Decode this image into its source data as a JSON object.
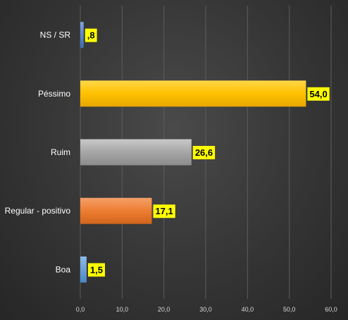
{
  "chart_data": {
    "type": "bar",
    "orientation": "horizontal",
    "categories": [
      "NS / SR",
      "Péssimo",
      "Ruim",
      "Regular - positivo",
      "Boa"
    ],
    "values": [
      0.8,
      54.0,
      26.6,
      17.1,
      1.5
    ],
    "value_labels": [
      ",8",
      "54,0",
      "26,6",
      "17,1",
      "1,5"
    ],
    "bar_colors": [
      "#4f81bd",
      "#ffc000",
      "#a6a6a6",
      "#ed7d31",
      "#5b9bd5"
    ],
    "label_background": "#ffff00",
    "xlim": [
      0,
      60
    ],
    "x_ticks": [
      0,
      10,
      20,
      30,
      40,
      50,
      60
    ],
    "x_tick_labels": [
      "0,0",
      "10,0",
      "20,0",
      "30,0",
      "40,0",
      "50,0",
      "60,0"
    ],
    "grid": true,
    "legend": "none",
    "title": "",
    "xlabel": "",
    "ylabel": ""
  }
}
